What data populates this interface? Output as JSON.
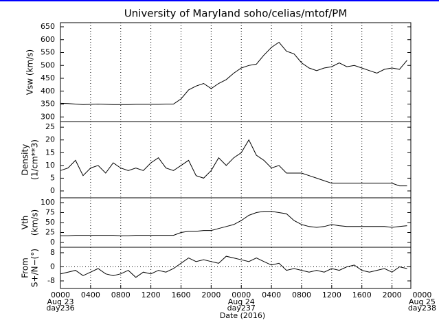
{
  "chart_data": [
    {
      "type": "line",
      "title": "University of Maryland  soho/celias/mtof/PM",
      "ylabel": [
        "Vsw (km/s)"
      ],
      "color": "#000000",
      "grid": true,
      "xlim": [
        0,
        46.5
      ],
      "xticks": [
        4,
        8,
        12,
        16,
        20,
        24,
        28,
        32,
        36,
        40,
        44
      ],
      "ylim": [
        282,
        666
      ],
      "yticks": [
        300,
        350,
        400,
        450,
        500,
        550,
        600,
        650
      ],
      "x": [
        0,
        1,
        2,
        3,
        4,
        5,
        6,
        7,
        8,
        9,
        10,
        11,
        12,
        13,
        14,
        15,
        16,
        17,
        18,
        19,
        20,
        21,
        22,
        23,
        24,
        25,
        26,
        27,
        28,
        29,
        30,
        31,
        32,
        33,
        34,
        35,
        36,
        37,
        38,
        39,
        40,
        41,
        42,
        43,
        44,
        45,
        46
      ],
      "values": [
        353,
        352,
        350,
        348,
        349,
        350,
        349,
        348,
        348,
        348,
        349,
        349,
        349,
        349,
        350,
        350,
        370,
        405,
        420,
        430,
        410,
        430,
        445,
        470,
        490,
        500,
        505,
        540,
        570,
        590,
        555,
        545,
        510,
        490,
        480,
        490,
        495,
        510,
        495,
        500,
        490,
        480,
        470,
        485,
        490,
        485,
        520
      ]
    },
    {
      "type": "line",
      "ylabel": [
        "Density",
        "(1/cm**3)"
      ],
      "color": "#000000",
      "grid": true,
      "xlim": [
        0,
        46.5
      ],
      "xticks": [
        4,
        8,
        12,
        16,
        20,
        24,
        28,
        32,
        36,
        40,
        44
      ],
      "ylim": [
        -2.7,
        27.2
      ],
      "yticks": [
        0,
        5,
        10,
        15,
        20,
        25
      ],
      "x": [
        0,
        1,
        2,
        3,
        4,
        5,
        6,
        7,
        8,
        9,
        10,
        11,
        12,
        13,
        14,
        15,
        16,
        17,
        18,
        19,
        20,
        21,
        22,
        23,
        24,
        25,
        26,
        27,
        28,
        29,
        30,
        31,
        32,
        33,
        34,
        35,
        36,
        37,
        38,
        39,
        40,
        41,
        42,
        43,
        44,
        45,
        46
      ],
      "values": [
        8,
        9,
        12,
        6,
        9,
        10,
        7,
        11,
        9,
        8,
        9,
        8,
        11,
        13,
        9,
        8,
        10,
        12,
        6,
        5,
        8,
        13,
        10,
        13,
        15,
        20,
        14,
        12,
        9,
        10,
        7,
        7,
        7,
        6,
        5,
        4,
        3,
        3,
        3,
        3,
        3,
        3,
        3,
        3,
        3,
        2,
        2
      ]
    },
    {
      "type": "line",
      "ylabel": [
        "Vth",
        "(km/s)"
      ],
      "color": "#000000",
      "grid": true,
      "xlim": [
        0,
        46.5
      ],
      "xticks": [
        4,
        8,
        12,
        16,
        20,
        24,
        28,
        32,
        36,
        40,
        44
      ],
      "ylim": [
        -12,
        112
      ],
      "yticks": [
        0,
        25,
        50,
        75,
        100
      ],
      "x": [
        0,
        1,
        2,
        3,
        4,
        5,
        6,
        7,
        8,
        9,
        10,
        11,
        12,
        13,
        14,
        15,
        16,
        17,
        18,
        19,
        20,
        21,
        22,
        23,
        24,
        25,
        26,
        27,
        28,
        29,
        30,
        31,
        32,
        33,
        34,
        35,
        36,
        37,
        38,
        39,
        40,
        41,
        42,
        43,
        44,
        45,
        46
      ],
      "values": [
        17,
        17,
        18,
        18,
        18,
        18,
        18,
        18,
        17,
        17,
        18,
        18,
        18,
        18,
        18,
        18,
        25,
        28,
        28,
        30,
        30,
        35,
        40,
        45,
        55,
        68,
        75,
        78,
        78,
        75,
        72,
        55,
        45,
        40,
        38,
        40,
        45,
        42,
        40,
        40,
        40,
        40,
        40,
        40,
        38,
        40,
        42
      ]
    },
    {
      "type": "line",
      "ylabel": [
        "From",
        "S+/N−(°)"
      ],
      "xlabel": "Date (2016)",
      "color": "#000000",
      "grid": true,
      "zero_line": true,
      "xlim": [
        0,
        46.5
      ],
      "xticks": [
        {
          "value": 0,
          "label": "0000"
        },
        {
          "value": 4,
          "label": "0400"
        },
        {
          "value": 8,
          "label": "0800"
        },
        {
          "value": 12,
          "label": "1200"
        },
        {
          "value": 16,
          "label": "1600"
        },
        {
          "value": 20,
          "label": "2000"
        },
        {
          "value": 24,
          "label": "0000"
        },
        {
          "value": 28,
          "label": "0400"
        },
        {
          "value": 32,
          "label": "0800"
        },
        {
          "value": 36,
          "label": "1200"
        },
        {
          "value": 40,
          "label": "1600"
        },
        {
          "value": 44,
          "label": "2000"
        },
        {
          "value": 48,
          "label": "0000"
        }
      ],
      "date_labels": [
        {
          "value": 0,
          "label": "Aug 23"
        },
        {
          "value": 24,
          "label": "Aug 24"
        },
        {
          "value": 48,
          "label": "Aug 25"
        }
      ],
      "day_labels": [
        {
          "value": 0,
          "label": "day236"
        },
        {
          "value": 24,
          "label": "day237"
        },
        {
          "value": 48,
          "label": "day238"
        }
      ],
      "ylim": [
        -12.3,
        11.1
      ],
      "yticks": [
        -8,
        0,
        8
      ],
      "x": [
        0,
        1,
        2,
        3,
        4,
        5,
        6,
        7,
        8,
        9,
        10,
        11,
        12,
        13,
        14,
        15,
        16,
        17,
        18,
        19,
        20,
        21,
        22,
        23,
        24,
        25,
        26,
        27,
        28,
        29,
        30,
        31,
        32,
        33,
        34,
        35,
        36,
        37,
        38,
        39,
        40,
        41,
        42,
        43,
        44,
        45,
        46
      ],
      "values": [
        -4,
        -3,
        -2,
        -5,
        -3,
        -1,
        -4,
        -5,
        -4,
        -2,
        -6,
        -3,
        -4,
        -2,
        -3,
        -1,
        2,
        5,
        3,
        4,
        3,
        2,
        6,
        5,
        4,
        3,
        5,
        3,
        1,
        2,
        -2,
        -1,
        -2,
        -3,
        -2,
        -3,
        -1,
        -2,
        0,
        1,
        -2,
        -3,
        -2,
        -1,
        -3,
        0,
        -1
      ]
    }
  ]
}
